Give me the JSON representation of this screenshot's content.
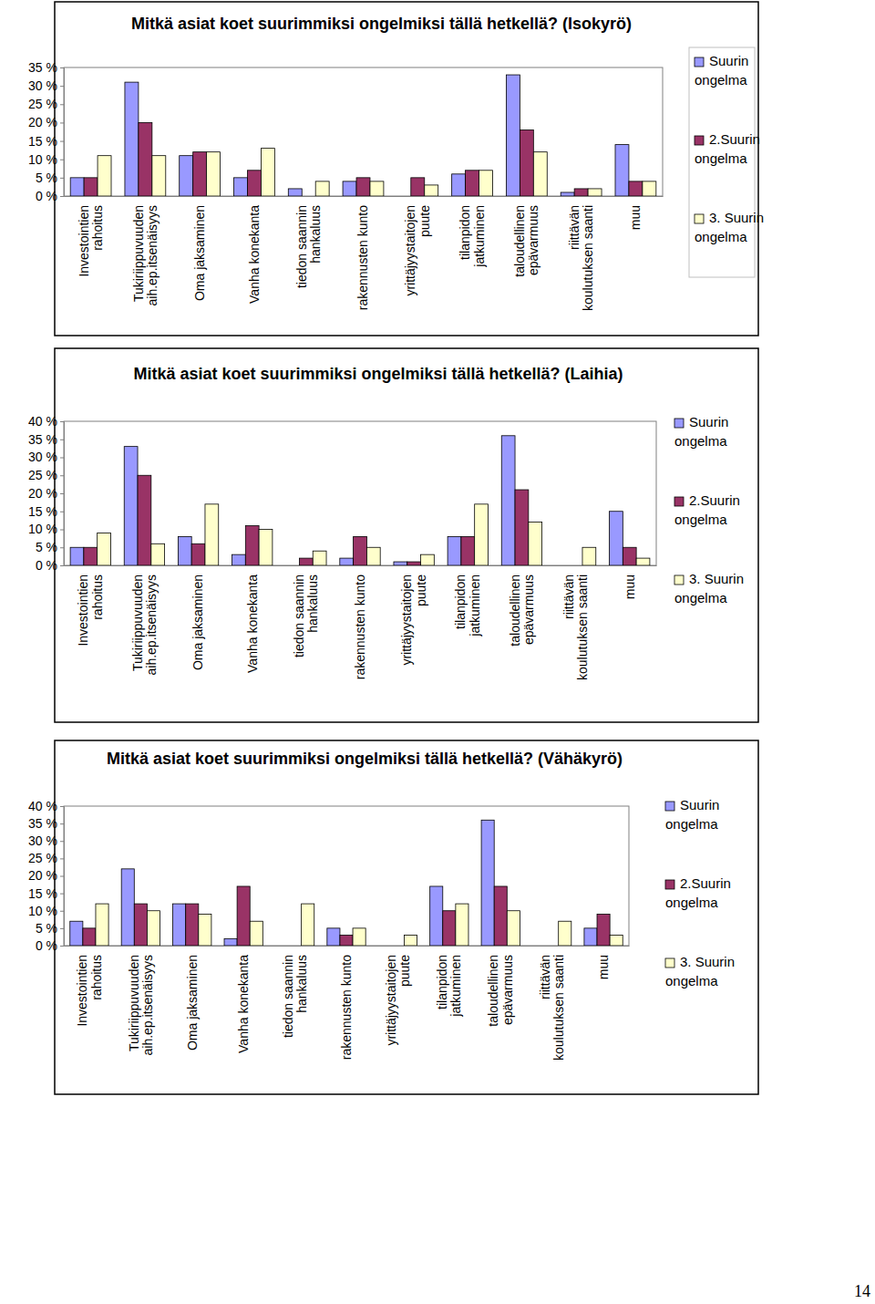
{
  "chart_data": [
    {
      "type": "bar",
      "title": "Mitkä asiat koet suurimmiksi ongelmiksi tällä hetkellä? (Isokyrö)",
      "categories": [
        "Investointien\nrahoitus",
        "Tukiriippuvuuden\naih.ep.itsenäisyys",
        "Oma jaksaminen",
        "Vanha konekanta",
        "tiedon saannin\nhankaluus",
        "rakennusten kunto",
        "yrittäjyystaitojen\npuute",
        "tilanpidon\njatkuminen",
        "taloudellinen\nepävarmuus",
        "riittävän\nkoulutuksen saanti",
        "muu"
      ],
      "series": [
        {
          "name": "Suurin ongelma",
          "color": "#9999ff",
          "values": [
            5,
            31,
            11,
            5,
            2,
            4,
            0,
            6,
            33,
            1,
            14
          ]
        },
        {
          "name": "2.Suurin ongelma",
          "color": "#993366",
          "values": [
            5,
            20,
            12,
            7,
            0,
            5,
            5,
            7,
            18,
            2,
            4
          ]
        },
        {
          "name": "3. Suurin ongelma",
          "color": "#ffffcc",
          "values": [
            11,
            11,
            12,
            13,
            4,
            4,
            3,
            7,
            12,
            2,
            4
          ]
        }
      ],
      "ylim": [
        0,
        35
      ],
      "yticks": [
        {
          "value": 0,
          "label": "0 %"
        },
        {
          "value": 5,
          "label": "5 %"
        },
        {
          "value": 10,
          "label": "10 %"
        },
        {
          "value": 15,
          "label": "15 %"
        },
        {
          "value": 20,
          "label": "20 %"
        },
        {
          "value": 25,
          "label": "25 %"
        },
        {
          "value": 30,
          "label": "30 %"
        },
        {
          "value": 35,
          "label": "35 %"
        }
      ],
      "grid": false,
      "legend": "right"
    },
    {
      "type": "bar",
      "title": "Mitkä asiat koet suurimmiksi ongelmiksi tällä hetkellä? (Laihia)",
      "categories": [
        "Investointien\nrahoitus",
        "Tukiriippuvuuden\naih.ep.itsenäisyys",
        "Oma jaksaminen",
        "Vanha konekanta",
        "tiedon saannin\nhankaluus",
        "rakennusten kunto",
        "yrittäjyystaitojen\npuute",
        "tilanpidon\njatkuminen",
        "taloudellinen\nepävarmuus",
        "riittävän\nkoulutuksen saanti",
        "muu"
      ],
      "series": [
        {
          "name": "Suurin ongelma",
          "color": "#9999ff",
          "values": [
            5,
            33,
            8,
            3,
            0,
            2,
            1,
            8,
            36,
            0,
            15
          ]
        },
        {
          "name": "2.Suurin ongelma",
          "color": "#993366",
          "values": [
            5,
            25,
            6,
            11,
            2,
            8,
            1,
            8,
            21,
            0,
            5
          ]
        },
        {
          "name": "3. Suurin ongelma",
          "color": "#ffffcc",
          "values": [
            9,
            6,
            17,
            10,
            4,
            5,
            3,
            17,
            12,
            5,
            2
          ]
        }
      ],
      "ylim": [
        0,
        40
      ],
      "yticks": [
        {
          "value": 0,
          "label": "0 %"
        },
        {
          "value": 5,
          "label": "5 %"
        },
        {
          "value": 10,
          "label": "10 %"
        },
        {
          "value": 15,
          "label": "15 %"
        },
        {
          "value": 20,
          "label": "20 %"
        },
        {
          "value": 25,
          "label": "25 %"
        },
        {
          "value": 30,
          "label": "30 %"
        },
        {
          "value": 35,
          "label": "35 %"
        },
        {
          "value": 40,
          "label": "40 %"
        }
      ],
      "grid": false,
      "legend": "right"
    },
    {
      "type": "bar",
      "title": "Mitkä asiat koet suurimmiksi ongelmiksi tällä hetkellä? (Vähäkyrö)",
      "categories": [
        "Investointien\nrahoitus",
        "Tukiriippuvuuden\naih.ep.itsenäisyys",
        "Oma jaksaminen",
        "Vanha konekanta",
        "tiedon saannin\nhankaluus",
        "rakennusten kunto",
        "yrittäjyystaitojen\npuute",
        "tilanpidon\njatkuminen",
        "taloudellinen\nepävarmuus",
        "riittävän\nkoulutuksen saanti",
        "muu"
      ],
      "series": [
        {
          "name": "Suurin ongelma",
          "color": "#9999ff",
          "values": [
            7,
            22,
            12,
            2,
            0,
            5,
            0,
            17,
            36,
            0,
            5
          ]
        },
        {
          "name": "2.Suurin ongelma",
          "color": "#993366",
          "values": [
            5,
            12,
            12,
            17,
            0,
            3,
            0,
            10,
            17,
            0,
            9
          ]
        },
        {
          "name": "3. Suurin ongelma",
          "color": "#ffffcc",
          "values": [
            12,
            10,
            9,
            7,
            12,
            5,
            3,
            12,
            10,
            7,
            3
          ]
        }
      ],
      "ylim": [
        0,
        40
      ],
      "yticks": [
        {
          "value": 0,
          "label": "0 %"
        },
        {
          "value": 5,
          "label": "5 %"
        },
        {
          "value": 10,
          "label": "10 %"
        },
        {
          "value": 15,
          "label": "15 %"
        },
        {
          "value": 20,
          "label": "20 %"
        },
        {
          "value": 25,
          "label": "25 %"
        },
        {
          "value": 30,
          "label": "30 %"
        },
        {
          "value": 35,
          "label": "35 %"
        },
        {
          "value": 40,
          "label": "40 %"
        }
      ],
      "grid": false,
      "legend": "right"
    }
  ],
  "page_number": "14"
}
